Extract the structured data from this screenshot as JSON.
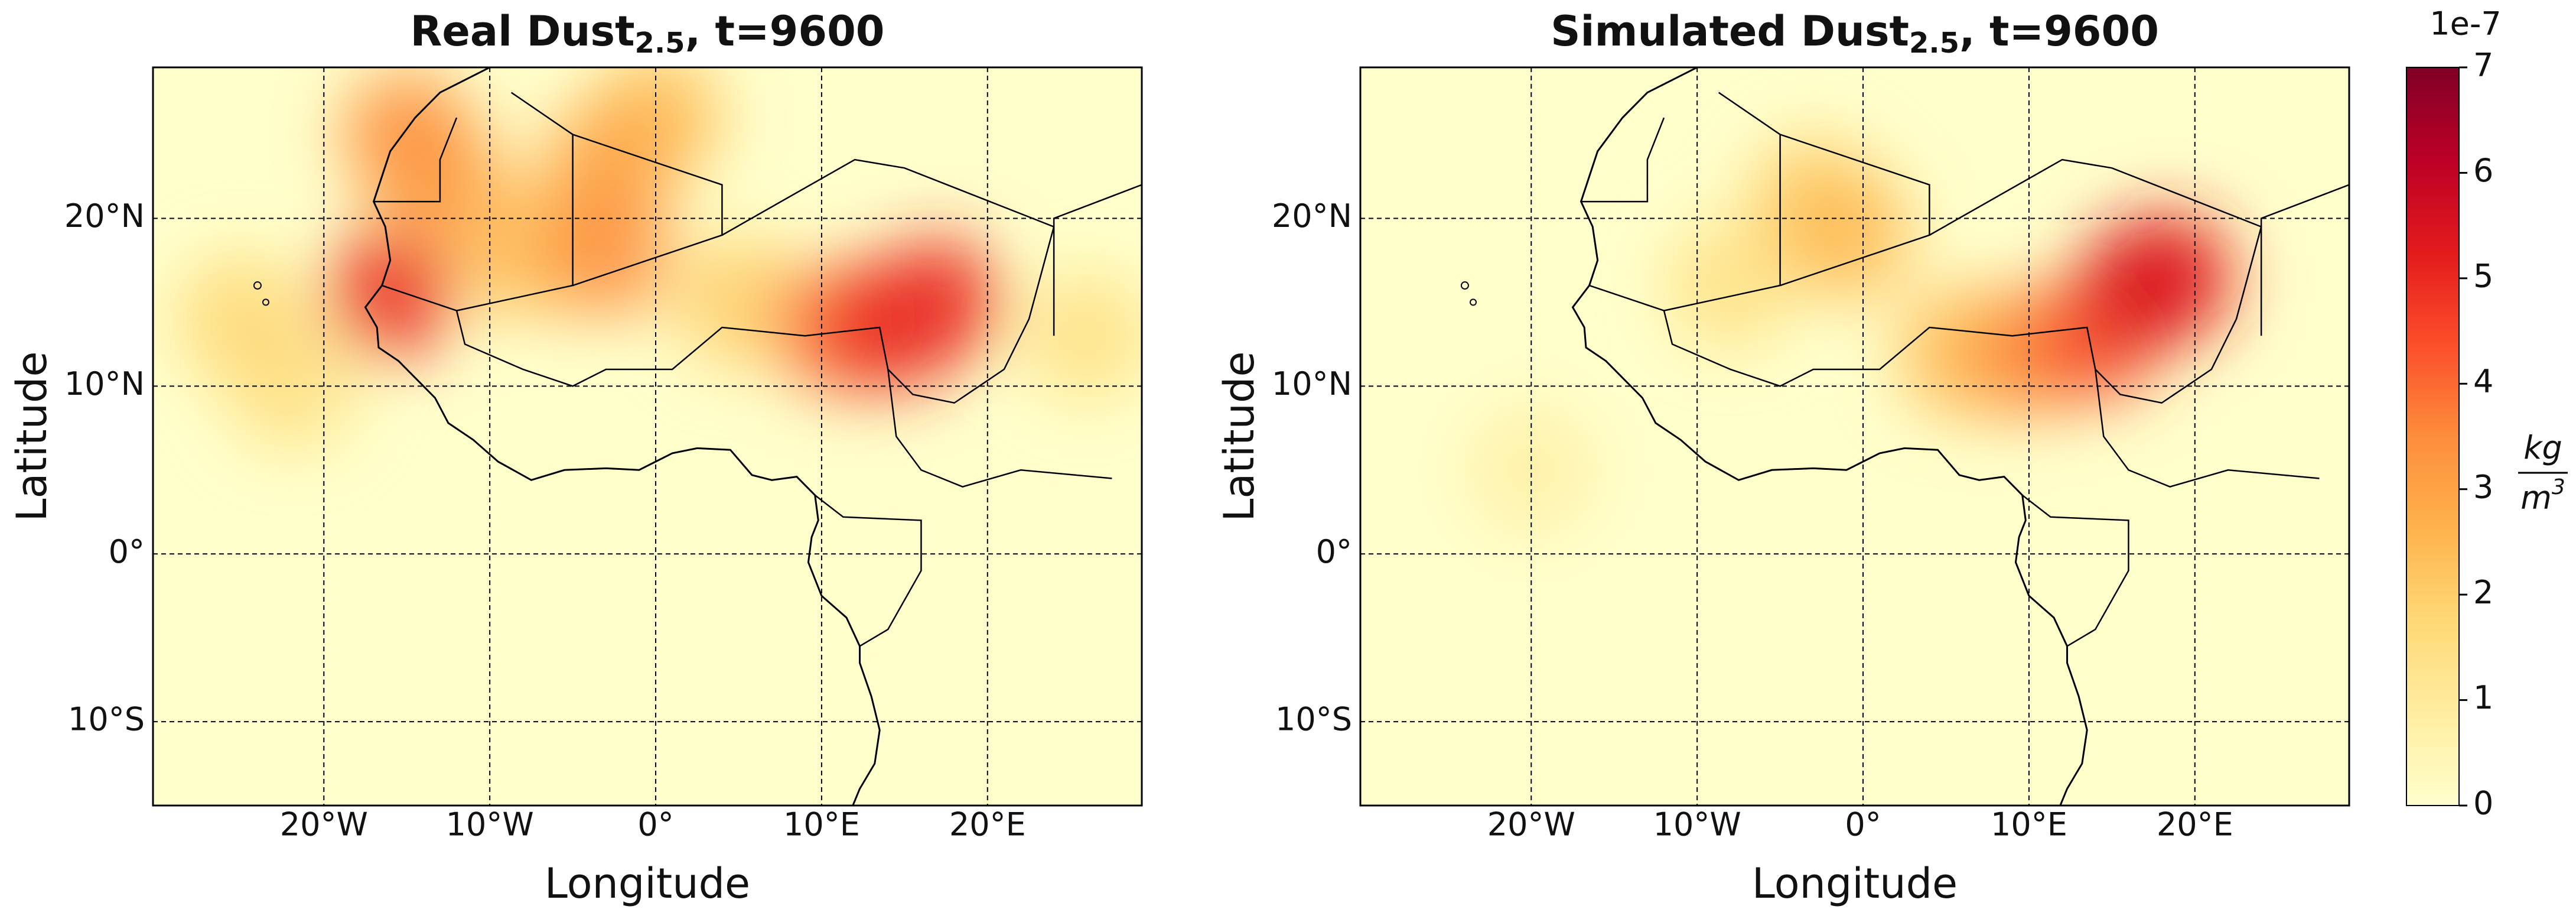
{
  "chart_data": [
    {
      "type": "heatmap",
      "title": {
        "text": "Real Dust",
        "subscript": "2.5",
        "suffix": ", t=9600"
      },
      "x_label": "Longitude",
      "y_label": "Latitude",
      "xlim": [
        -30.3,
        29.3
      ],
      "ylim": [
        -15,
        29
      ],
      "xticks": [
        {
          "value": -20,
          "label": "20°W"
        },
        {
          "value": -10,
          "label": "10°W"
        },
        {
          "value": 0,
          "label": "0°"
        },
        {
          "value": 10,
          "label": "10°E"
        },
        {
          "value": 20,
          "label": "20°E"
        }
      ],
      "yticks": [
        {
          "value": -10,
          "label": "10°S"
        },
        {
          "value": 0,
          "label": "0°"
        },
        {
          "value": 10,
          "label": "10°N"
        },
        {
          "value": 20,
          "label": "20°N"
        }
      ],
      "grid": true,
      "hotspots": [
        {
          "lon": -22,
          "lat": 10,
          "value": 1.5
        },
        {
          "lon": -25,
          "lat": 14,
          "value": 1.8
        },
        {
          "lon": 26,
          "lat": 13,
          "value": 1.5
        },
        {
          "lon": 5,
          "lat": 15,
          "value": 2
        },
        {
          "lon": 0,
          "lat": 26,
          "value": 2.5
        },
        {
          "lon": -8,
          "lat": 18,
          "value": 2.5
        },
        {
          "lon": -3,
          "lat": 23,
          "value": 3
        },
        {
          "lon": -13,
          "lat": 22,
          "value": 3
        },
        {
          "lon": -3,
          "lat": 18,
          "value": 3.5
        },
        {
          "lon": -15,
          "lat": 25,
          "value": 3.5
        },
        {
          "lon": 11,
          "lat": 13.5,
          "value": 4
        },
        {
          "lon": -16,
          "lat": 15.5,
          "value": 5
        },
        {
          "lon": 14,
          "lat": 13.5,
          "value": 5
        },
        {
          "lon": 17,
          "lat": 15,
          "value": 5
        }
      ]
    },
    {
      "type": "heatmap",
      "title": {
        "text": "Simulated Dust",
        "subscript": "2.5",
        "suffix": ", t=9600"
      },
      "x_label": "Longitude",
      "y_label": "Latitude",
      "xlim": [
        -30.3,
        29.3
      ],
      "ylim": [
        -15,
        29
      ],
      "xticks": [
        {
          "value": -20,
          "label": "20°W"
        },
        {
          "value": -10,
          "label": "10°W"
        },
        {
          "value": 0,
          "label": "0°"
        },
        {
          "value": 10,
          "label": "10°E"
        },
        {
          "value": 20,
          "label": "20°E"
        }
      ],
      "yticks": [
        {
          "value": -10,
          "label": "10°S"
        },
        {
          "value": 0,
          "label": "0°"
        },
        {
          "value": 10,
          "label": "10°N"
        },
        {
          "value": 20,
          "label": "20°N"
        }
      ],
      "grid": true,
      "hotspots": [
        {
          "lon": -20,
          "lat": 5,
          "value": 0.8
        },
        {
          "lon": -8,
          "lat": 16,
          "value": 1.5
        },
        {
          "lon": -3,
          "lat": 21,
          "value": 2
        },
        {
          "lon": -1,
          "lat": 19,
          "value": 2.5
        },
        {
          "lon": 6,
          "lat": 12,
          "value": 2.5
        },
        {
          "lon": 10,
          "lat": 12,
          "value": 3.5
        },
        {
          "lon": 14,
          "lat": 13,
          "value": 4.5
        },
        {
          "lon": 18.5,
          "lat": 16.5,
          "value": 5
        },
        {
          "lon": 17,
          "lat": 16,
          "value": 5.5
        }
      ]
    }
  ],
  "colorbar": {
    "lim": [
      0,
      7
    ],
    "ticks": [
      0,
      1,
      2,
      3,
      4,
      5,
      6,
      7
    ],
    "scale_label": "1e-7",
    "unit": {
      "numerator": "kg",
      "denominator": "m",
      "exponent": "3"
    },
    "colormap": [
      "#ffffcc",
      "#ffeda0",
      "#fed976",
      "#feb24c",
      "#fd8d3c",
      "#fc4e2a",
      "#e31a1c",
      "#bd0026",
      "#800026"
    ]
  }
}
